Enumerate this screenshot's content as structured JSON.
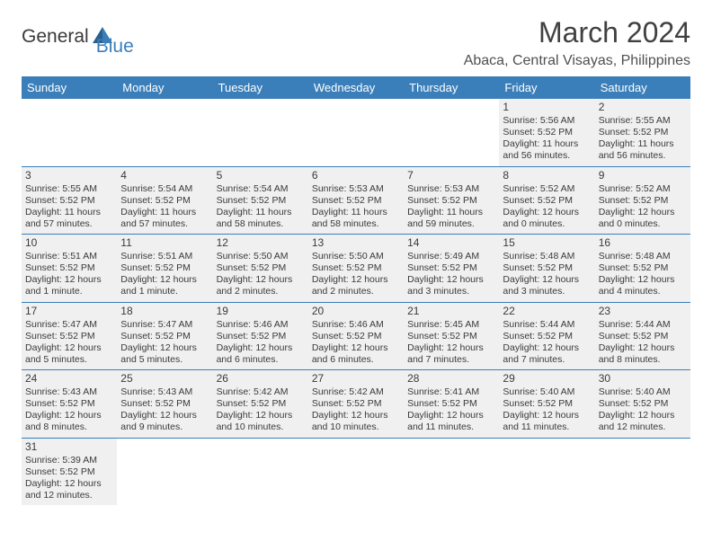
{
  "logo": {
    "text1": "General",
    "text2": "Blue",
    "color1": "#3a3a3a",
    "color2": "#3b7fba"
  },
  "title": "March 2024",
  "location": "Abaca, Central Visayas, Philippines",
  "colors": {
    "header_bg": "#3b7fba",
    "header_text": "#ffffff",
    "shade": "#f0f0f0",
    "text": "#3a3a3a",
    "border": "#3b7fba"
  },
  "dayHeaders": [
    "Sunday",
    "Monday",
    "Tuesday",
    "Wednesday",
    "Thursday",
    "Friday",
    "Saturday"
  ],
  "weeks": [
    [
      {
        "num": "",
        "sunrise": "",
        "sunset": "",
        "daylight": "",
        "shaded": false
      },
      {
        "num": "",
        "sunrise": "",
        "sunset": "",
        "daylight": "",
        "shaded": false
      },
      {
        "num": "",
        "sunrise": "",
        "sunset": "",
        "daylight": "",
        "shaded": false
      },
      {
        "num": "",
        "sunrise": "",
        "sunset": "",
        "daylight": "",
        "shaded": false
      },
      {
        "num": "",
        "sunrise": "",
        "sunset": "",
        "daylight": "",
        "shaded": false
      },
      {
        "num": "1",
        "sunrise": "Sunrise: 5:56 AM",
        "sunset": "Sunset: 5:52 PM",
        "daylight": "Daylight: 11 hours and 56 minutes.",
        "shaded": true
      },
      {
        "num": "2",
        "sunrise": "Sunrise: 5:55 AM",
        "sunset": "Sunset: 5:52 PM",
        "daylight": "Daylight: 11 hours and 56 minutes.",
        "shaded": true
      }
    ],
    [
      {
        "num": "3",
        "sunrise": "Sunrise: 5:55 AM",
        "sunset": "Sunset: 5:52 PM",
        "daylight": "Daylight: 11 hours and 57 minutes.",
        "shaded": true
      },
      {
        "num": "4",
        "sunrise": "Sunrise: 5:54 AM",
        "sunset": "Sunset: 5:52 PM",
        "daylight": "Daylight: 11 hours and 57 minutes.",
        "shaded": true
      },
      {
        "num": "5",
        "sunrise": "Sunrise: 5:54 AM",
        "sunset": "Sunset: 5:52 PM",
        "daylight": "Daylight: 11 hours and 58 minutes.",
        "shaded": true
      },
      {
        "num": "6",
        "sunrise": "Sunrise: 5:53 AM",
        "sunset": "Sunset: 5:52 PM",
        "daylight": "Daylight: 11 hours and 58 minutes.",
        "shaded": true
      },
      {
        "num": "7",
        "sunrise": "Sunrise: 5:53 AM",
        "sunset": "Sunset: 5:52 PM",
        "daylight": "Daylight: 11 hours and 59 minutes.",
        "shaded": true
      },
      {
        "num": "8",
        "sunrise": "Sunrise: 5:52 AM",
        "sunset": "Sunset: 5:52 PM",
        "daylight": "Daylight: 12 hours and 0 minutes.",
        "shaded": true
      },
      {
        "num": "9",
        "sunrise": "Sunrise: 5:52 AM",
        "sunset": "Sunset: 5:52 PM",
        "daylight": "Daylight: 12 hours and 0 minutes.",
        "shaded": true
      }
    ],
    [
      {
        "num": "10",
        "sunrise": "Sunrise: 5:51 AM",
        "sunset": "Sunset: 5:52 PM",
        "daylight": "Daylight: 12 hours and 1 minute.",
        "shaded": true
      },
      {
        "num": "11",
        "sunrise": "Sunrise: 5:51 AM",
        "sunset": "Sunset: 5:52 PM",
        "daylight": "Daylight: 12 hours and 1 minute.",
        "shaded": true
      },
      {
        "num": "12",
        "sunrise": "Sunrise: 5:50 AM",
        "sunset": "Sunset: 5:52 PM",
        "daylight": "Daylight: 12 hours and 2 minutes.",
        "shaded": true
      },
      {
        "num": "13",
        "sunrise": "Sunrise: 5:50 AM",
        "sunset": "Sunset: 5:52 PM",
        "daylight": "Daylight: 12 hours and 2 minutes.",
        "shaded": true
      },
      {
        "num": "14",
        "sunrise": "Sunrise: 5:49 AM",
        "sunset": "Sunset: 5:52 PM",
        "daylight": "Daylight: 12 hours and 3 minutes.",
        "shaded": true
      },
      {
        "num": "15",
        "sunrise": "Sunrise: 5:48 AM",
        "sunset": "Sunset: 5:52 PM",
        "daylight": "Daylight: 12 hours and 3 minutes.",
        "shaded": true
      },
      {
        "num": "16",
        "sunrise": "Sunrise: 5:48 AM",
        "sunset": "Sunset: 5:52 PM",
        "daylight": "Daylight: 12 hours and 4 minutes.",
        "shaded": true
      }
    ],
    [
      {
        "num": "17",
        "sunrise": "Sunrise: 5:47 AM",
        "sunset": "Sunset: 5:52 PM",
        "daylight": "Daylight: 12 hours and 5 minutes.",
        "shaded": true
      },
      {
        "num": "18",
        "sunrise": "Sunrise: 5:47 AM",
        "sunset": "Sunset: 5:52 PM",
        "daylight": "Daylight: 12 hours and 5 minutes.",
        "shaded": true
      },
      {
        "num": "19",
        "sunrise": "Sunrise: 5:46 AM",
        "sunset": "Sunset: 5:52 PM",
        "daylight": "Daylight: 12 hours and 6 minutes.",
        "shaded": true
      },
      {
        "num": "20",
        "sunrise": "Sunrise: 5:46 AM",
        "sunset": "Sunset: 5:52 PM",
        "daylight": "Daylight: 12 hours and 6 minutes.",
        "shaded": true
      },
      {
        "num": "21",
        "sunrise": "Sunrise: 5:45 AM",
        "sunset": "Sunset: 5:52 PM",
        "daylight": "Daylight: 12 hours and 7 minutes.",
        "shaded": true
      },
      {
        "num": "22",
        "sunrise": "Sunrise: 5:44 AM",
        "sunset": "Sunset: 5:52 PM",
        "daylight": "Daylight: 12 hours and 7 minutes.",
        "shaded": true
      },
      {
        "num": "23",
        "sunrise": "Sunrise: 5:44 AM",
        "sunset": "Sunset: 5:52 PM",
        "daylight": "Daylight: 12 hours and 8 minutes.",
        "shaded": true
      }
    ],
    [
      {
        "num": "24",
        "sunrise": "Sunrise: 5:43 AM",
        "sunset": "Sunset: 5:52 PM",
        "daylight": "Daylight: 12 hours and 8 minutes.",
        "shaded": true
      },
      {
        "num": "25",
        "sunrise": "Sunrise: 5:43 AM",
        "sunset": "Sunset: 5:52 PM",
        "daylight": "Daylight: 12 hours and 9 minutes.",
        "shaded": true
      },
      {
        "num": "26",
        "sunrise": "Sunrise: 5:42 AM",
        "sunset": "Sunset: 5:52 PM",
        "daylight": "Daylight: 12 hours and 10 minutes.",
        "shaded": true
      },
      {
        "num": "27",
        "sunrise": "Sunrise: 5:42 AM",
        "sunset": "Sunset: 5:52 PM",
        "daylight": "Daylight: 12 hours and 10 minutes.",
        "shaded": true
      },
      {
        "num": "28",
        "sunrise": "Sunrise: 5:41 AM",
        "sunset": "Sunset: 5:52 PM",
        "daylight": "Daylight: 12 hours and 11 minutes.",
        "shaded": true
      },
      {
        "num": "29",
        "sunrise": "Sunrise: 5:40 AM",
        "sunset": "Sunset: 5:52 PM",
        "daylight": "Daylight: 12 hours and 11 minutes.",
        "shaded": true
      },
      {
        "num": "30",
        "sunrise": "Sunrise: 5:40 AM",
        "sunset": "Sunset: 5:52 PM",
        "daylight": "Daylight: 12 hours and 12 minutes.",
        "shaded": true
      }
    ],
    [
      {
        "num": "31",
        "sunrise": "Sunrise: 5:39 AM",
        "sunset": "Sunset: 5:52 PM",
        "daylight": "Daylight: 12 hours and 12 minutes.",
        "shaded": true
      },
      {
        "num": "",
        "sunrise": "",
        "sunset": "",
        "daylight": "",
        "shaded": false
      },
      {
        "num": "",
        "sunrise": "",
        "sunset": "",
        "daylight": "",
        "shaded": false
      },
      {
        "num": "",
        "sunrise": "",
        "sunset": "",
        "daylight": "",
        "shaded": false
      },
      {
        "num": "",
        "sunrise": "",
        "sunset": "",
        "daylight": "",
        "shaded": false
      },
      {
        "num": "",
        "sunrise": "",
        "sunset": "",
        "daylight": "",
        "shaded": false
      },
      {
        "num": "",
        "sunrise": "",
        "sunset": "",
        "daylight": "",
        "shaded": false
      }
    ]
  ]
}
